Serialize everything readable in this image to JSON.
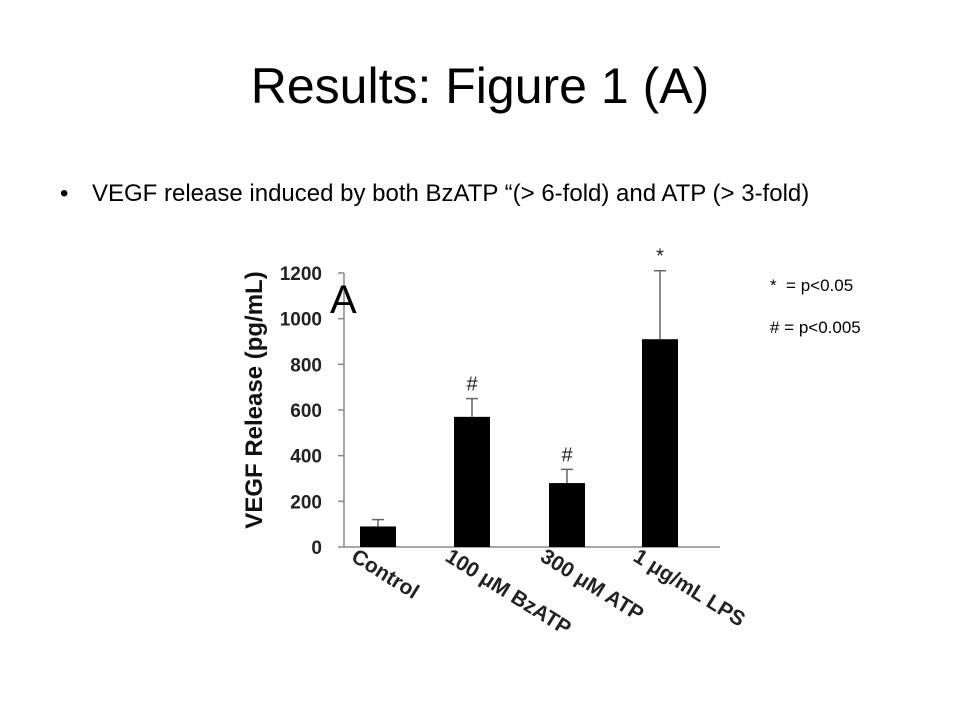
{
  "slide": {
    "title": "Results: Figure 1 (A)",
    "bullet_symbol": "•",
    "bullet_text": "VEGF release induced by both BzATP “(> 6-fold) and ATP (> 3-fold)",
    "legend": [
      "*  = p<0.05",
      "# = p<0.005"
    ]
  },
  "chart_data": {
    "type": "bar",
    "panel_label": "A",
    "ylabel": "VEGF Release (pg/mL)",
    "xlabel": "",
    "ylim": [
      0,
      1200
    ],
    "yticks": [
      0,
      200,
      400,
      600,
      800,
      1000,
      1200
    ],
    "categories": [
      "Control",
      "100 μM BzATP",
      "300 μM ATP",
      "1 μg/mL LPS"
    ],
    "values": [
      90,
      570,
      280,
      910
    ],
    "error_upper": [
      30,
      80,
      60,
      300
    ],
    "significance": [
      "",
      "#",
      "#",
      "*"
    ],
    "bar_color": "#000000",
    "grid": false
  }
}
